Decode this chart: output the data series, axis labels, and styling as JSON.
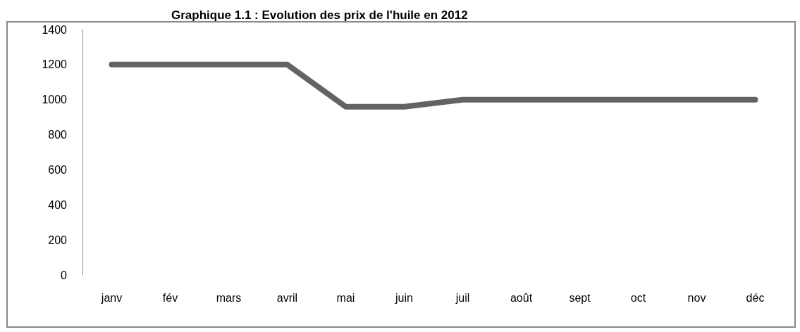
{
  "chart_data": {
    "type": "line",
    "title": "Graphique 1.1 : Evolution des prix de l'huile en 2012",
    "categories": [
      "janv",
      "fév",
      "mars",
      "avril",
      "mai",
      "juin",
      "juil",
      "août",
      "sept",
      "oct",
      "nov",
      "déc"
    ],
    "series": [
      {
        "color": "#636363",
        "values": [
          1200,
          1200,
          1200,
          1200,
          960,
          960,
          1000,
          1000,
          1000,
          1000,
          1000,
          1000
        ]
      }
    ],
    "ylim": [
      0,
      1400
    ],
    "yticks": [
      0,
      200,
      400,
      600,
      800,
      1000,
      1200,
      1400
    ],
    "grid": false,
    "line_style": "solid"
  }
}
